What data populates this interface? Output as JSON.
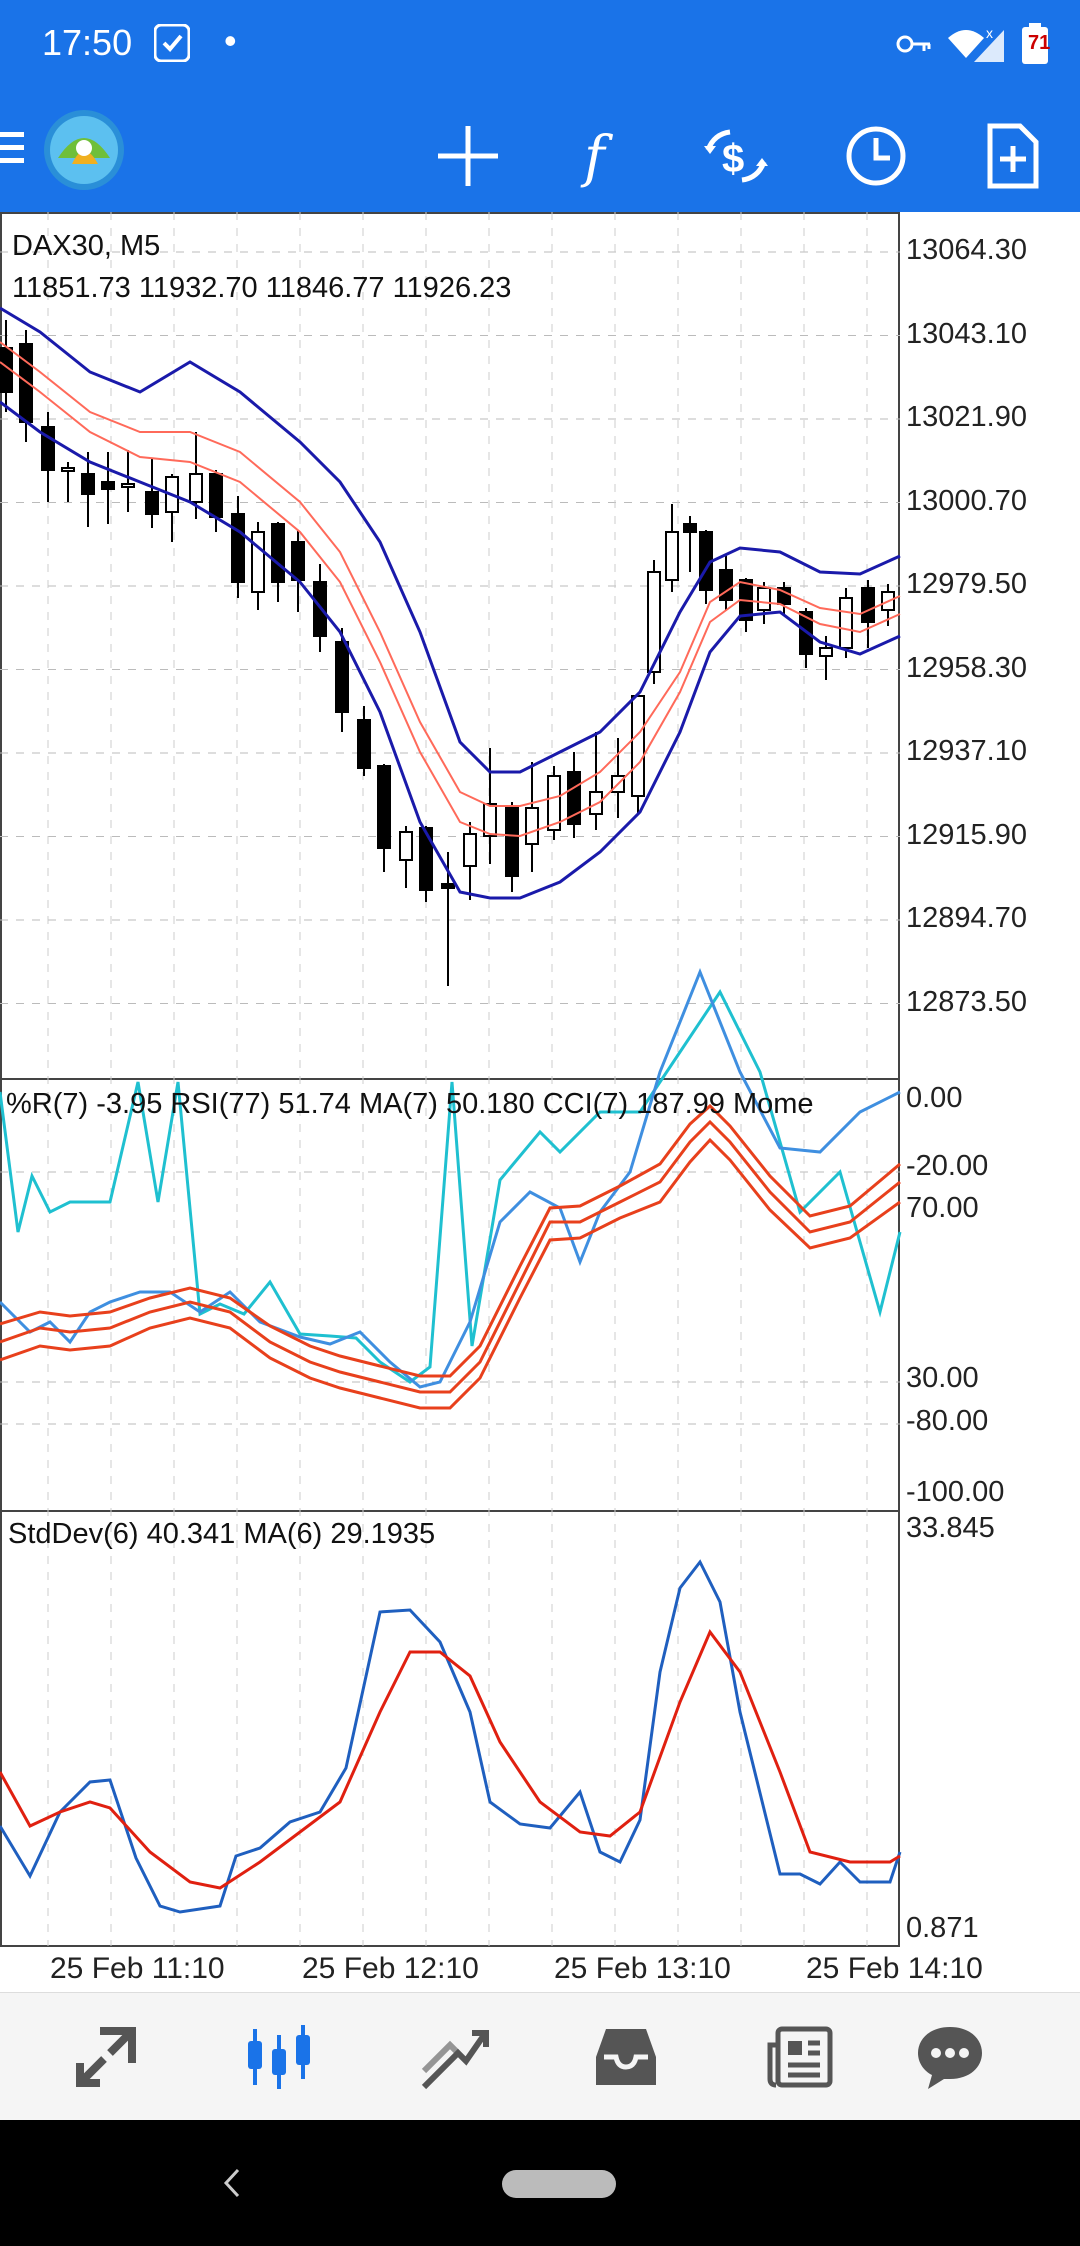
{
  "status_bar": {
    "time": "17:50",
    "dot": "•",
    "battery": "71"
  },
  "toolbar": {
    "menu_icon": "menu-icon",
    "logo_icon": "metatrader-logo-icon",
    "actions": [
      "crosshair-icon",
      "indicators-f-icon",
      "trade-dollar-icon",
      "timeframe-clock-icon",
      "new-document-icon"
    ]
  },
  "chart": {
    "symbol_header": "DAX30, M5",
    "ohlc": "11851.73 11932.70 11846.77 11926.23",
    "price_axis": [
      "13064.30",
      "13043.10",
      "13021.90",
      "13000.70",
      "12979.50",
      "12958.30",
      "12937.10",
      "12915.90",
      "12894.70",
      "12873.50"
    ],
    "osc_header": "%R(7) -3.95 RSI(77) 51.74 MA(7) 50.180 CCI(7) 187.99 Mome",
    "osc_axis": [
      "0.00",
      "-20.00",
      "70.00",
      "30.00",
      "-80.00",
      "-100.00"
    ],
    "std_header": "StdDev(6) 40.341 MA(6) 29.1935",
    "std_axis": [
      "33.845",
      "0.871"
    ],
    "time_axis": [
      "25 Feb 11:10",
      "25 Feb 12:10",
      "25 Feb 13:10",
      "25 Feb 14:10"
    ]
  },
  "bottom_nav": [
    {
      "name": "quotes-icon",
      "active": false
    },
    {
      "name": "chart-icon",
      "active": true
    },
    {
      "name": "trade-icon",
      "active": false
    },
    {
      "name": "history-inbox-icon",
      "active": false
    },
    {
      "name": "news-icon",
      "active": false
    },
    {
      "name": "chat-icon",
      "active": false
    }
  ],
  "colors": {
    "accent": "#1a73e8",
    "bull_body": "#ffffff",
    "bear_body": "#000000",
    "band_outer": "#1a1aaa",
    "band_inner": "#ff6a5a",
    "osc_red": "#e8401c",
    "osc_blue": "#3f8fe0",
    "osc_cyan": "#1fc0d0",
    "std_blue": "#1f5fbf",
    "std_red": "#e02010"
  }
}
